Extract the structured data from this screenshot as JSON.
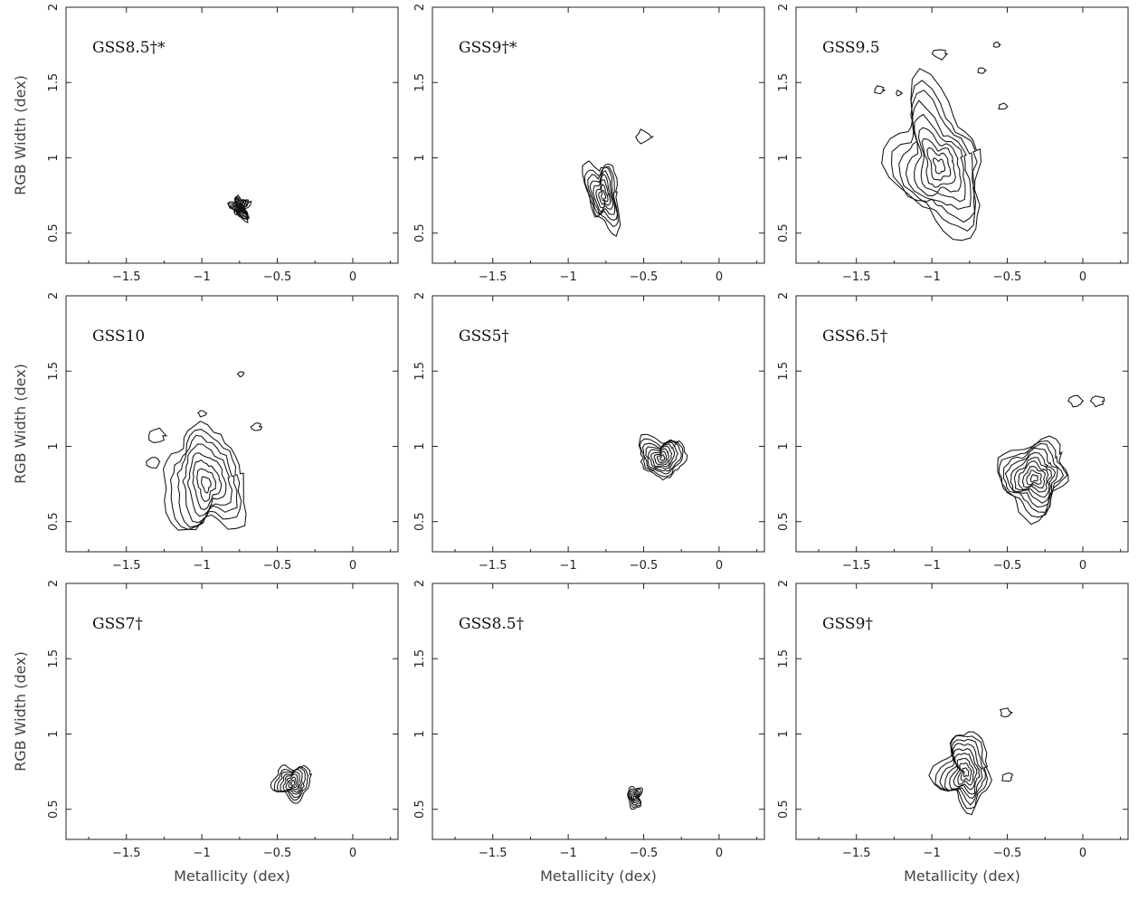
{
  "chart_data": {
    "type": "contour",
    "grid": false,
    "x_axis": {
      "label": "Metallicity (dex)",
      "range": [
        -1.9,
        0.3
      ],
      "ticks": [
        -1.5,
        -1,
        -0.5,
        0
      ],
      "tick_labels": [
        "−1.5",
        "−1",
        "−0.5",
        "0"
      ]
    },
    "y_axis": {
      "label": "RGB Width (dex)",
      "range": [
        0.3,
        2.0
      ],
      "ticks": [
        0.5,
        1,
        1.5,
        2
      ],
      "tick_labels": [
        "0.5",
        "1",
        "1.5",
        "2"
      ]
    },
    "panels": [
      {
        "label": "GSS8.5†*",
        "peak": [
          -0.75,
          0.67
        ],
        "sx": 0.05,
        "sy": 0.07,
        "rot": -0.5,
        "levels": 12,
        "noisy": true,
        "spurs": []
      },
      {
        "label": "GSS9†*",
        "peak": [
          -0.77,
          0.76
        ],
        "sx": 0.1,
        "sy": 0.23,
        "rot": -0.15,
        "levels": 8,
        "noisy": false,
        "spurs": [
          [
            -0.5,
            1.14
          ]
        ]
      },
      {
        "label": "GSS9.5",
        "peak": [
          -0.96,
          0.97
        ],
        "sx": 0.28,
        "sy": 0.46,
        "rot": -0.3,
        "levels": 9,
        "noisy": false,
        "spurs": [
          [
            -0.57,
            1.75
          ],
          [
            -1.35,
            1.45
          ],
          [
            -1.22,
            1.43
          ],
          [
            -0.67,
            1.58
          ],
          [
            -0.53,
            1.34
          ],
          [
            -0.95,
            1.69
          ]
        ]
      },
      {
        "label": "GSS10",
        "peak": [
          -0.98,
          0.77
        ],
        "sx": 0.25,
        "sy": 0.36,
        "rot": -0.2,
        "levels": 8,
        "noisy": false,
        "spurs": [
          [
            -1.3,
            1.07
          ],
          [
            -1.32,
            0.9
          ],
          [
            -0.74,
            1.48
          ],
          [
            -0.64,
            1.13
          ],
          [
            -1.0,
            1.22
          ]
        ]
      },
      {
        "label": "GSS5†",
        "peak": [
          -0.38,
          0.93
        ],
        "sx": 0.14,
        "sy": 0.14,
        "rot": -0.75,
        "levels": 9,
        "noisy": false,
        "spurs": []
      },
      {
        "label": "GSS6.5†",
        "peak": [
          -0.33,
          0.8
        ],
        "sx": 0.24,
        "sy": 0.22,
        "rot": -0.7,
        "levels": 10,
        "noisy": false,
        "spurs": [
          [
            -0.05,
            1.3
          ],
          [
            0.1,
            1.3
          ]
        ]
      },
      {
        "label": "GSS7†",
        "peak": [
          -0.4,
          0.68
        ],
        "sx": 0.11,
        "sy": 0.12,
        "rot": -0.4,
        "levels": 8,
        "noisy": false,
        "spurs": []
      },
      {
        "label": "GSS8.5†",
        "peak": [
          -0.56,
          0.58
        ],
        "sx": 0.05,
        "sy": 0.065,
        "rot": 0.0,
        "levels": 6,
        "noisy": false,
        "spurs": []
      },
      {
        "label": "GSS9†",
        "peak": [
          -0.78,
          0.76
        ],
        "sx": 0.16,
        "sy": 0.25,
        "rot": -0.15,
        "levels": 9,
        "noisy": false,
        "spurs": [
          [
            -0.51,
            1.14
          ],
          [
            -0.5,
            0.71
          ]
        ]
      }
    ]
  }
}
